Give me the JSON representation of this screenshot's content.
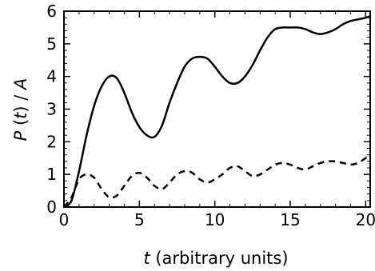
{
  "chart_data": {
    "type": "line",
    "xlabel": {
      "var": "t",
      "text": " (arbitrary units)"
    },
    "ylabel": {
      "var": "P",
      "rest": " (",
      "var2": "t",
      "tail": ") / ",
      "var3": "A"
    },
    "xlim": [
      0,
      20.3
    ],
    "ylim": [
      0,
      6
    ],
    "xticks": [
      0,
      5,
      10,
      15,
      20
    ],
    "yticks": [
      0,
      1,
      2,
      3,
      4,
      5,
      6
    ],
    "grid": false,
    "series": [
      {
        "style": "solid",
        "color": "#000000",
        "x": [
          0,
          0.5,
          1,
          1.5,
          2,
          2.5,
          3,
          3.5,
          4,
          4.5,
          5,
          5.5,
          6,
          6.5,
          7,
          7.5,
          8,
          8.5,
          9,
          9.5,
          10,
          10.5,
          11,
          11.5,
          12,
          12.5,
          13,
          13.5,
          14,
          14.5,
          15,
          15.5,
          16,
          16.5,
          17,
          17.5,
          18,
          18.5,
          19,
          19.5,
          20,
          20.3
        ],
        "y": [
          0,
          0.2,
          1.1,
          2.2,
          3.1,
          3.7,
          4.0,
          3.95,
          3.5,
          2.9,
          2.45,
          2.2,
          2.15,
          2.5,
          3.2,
          3.8,
          4.3,
          4.55,
          4.6,
          4.55,
          4.3,
          4.0,
          3.8,
          3.8,
          4.0,
          4.35,
          4.8,
          5.2,
          5.45,
          5.5,
          5.5,
          5.5,
          5.45,
          5.35,
          5.3,
          5.35,
          5.45,
          5.6,
          5.7,
          5.75,
          5.8,
          5.85
        ]
      },
      {
        "style": "dashed",
        "color": "#000000",
        "x": [
          0,
          0.5,
          1,
          1.5,
          2,
          2.5,
          3,
          3.5,
          4,
          4.5,
          5,
          5.5,
          6,
          6.5,
          7,
          7.5,
          8,
          8.5,
          9,
          9.5,
          10,
          10.5,
          11,
          11.5,
          12,
          12.5,
          13,
          13.5,
          14,
          14.5,
          15,
          15.5,
          16,
          16.5,
          17,
          17.5,
          18,
          18.5,
          19,
          19.5,
          20,
          20.3
        ],
        "y": [
          0,
          0.3,
          0.85,
          1.0,
          0.9,
          0.55,
          0.3,
          0.35,
          0.65,
          0.95,
          1.05,
          0.9,
          0.65,
          0.55,
          0.75,
          1.0,
          1.1,
          1.05,
          0.85,
          0.75,
          0.85,
          1.0,
          1.2,
          1.25,
          1.1,
          0.95,
          1.0,
          1.15,
          1.3,
          1.35,
          1.3,
          1.2,
          1.15,
          1.25,
          1.35,
          1.4,
          1.4,
          1.35,
          1.3,
          1.35,
          1.5,
          1.55
        ]
      }
    ]
  }
}
